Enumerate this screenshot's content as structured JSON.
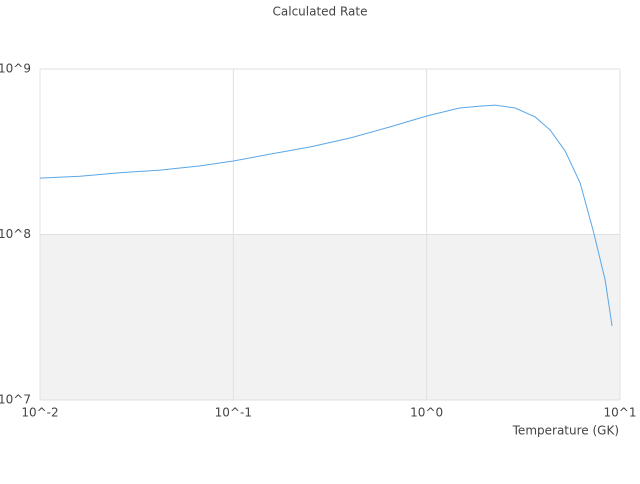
{
  "chart_data": {
    "type": "line",
    "title": "Calculated Rate",
    "x_label": "Temperature (GK)",
    "x_log": true,
    "y_log": true,
    "grid": true,
    "band_color": "#f2f2f2",
    "xlim": [
      0.01,
      10
    ],
    "ylim": [
      10000000,
      1000000000
    ],
    "xticks": [
      {
        "value": 0.01,
        "label": "10^-2"
      },
      {
        "value": 0.1,
        "label": "10^-1"
      },
      {
        "value": 1,
        "label": "10^0"
      },
      {
        "value": 10,
        "label": "10^1"
      }
    ],
    "yticks": [
      {
        "value": 10000000,
        "label": "10^7"
      },
      {
        "value": 100000000,
        "label": "10^8"
      },
      {
        "value": 1000000000,
        "label": "10^9"
      }
    ],
    "x": [
      0.01,
      0.0161,
      0.0259,
      0.0418,
      0.0673,
      0.1,
      0.155,
      0.249,
      0.402,
      0.647,
      1.0,
      1.48,
      1.89,
      2.26,
      2.87,
      3.64,
      4.35,
      5.2,
      6.22,
      7.26,
      8.38,
      9.1
    ],
    "series": [
      {
        "color": "#5aa7e8",
        "values": [
          219000000,
          225000000,
          236000000,
          245000000,
          260000000,
          278000000,
          306000000,
          338000000,
          383000000,
          447000000,
          520000000,
          581000000,
          597000000,
          605000000,
          581000000,
          513000000,
          428000000,
          320000000,
          205000000,
          106000000,
          53100000,
          28000000
        ]
      }
    ]
  }
}
